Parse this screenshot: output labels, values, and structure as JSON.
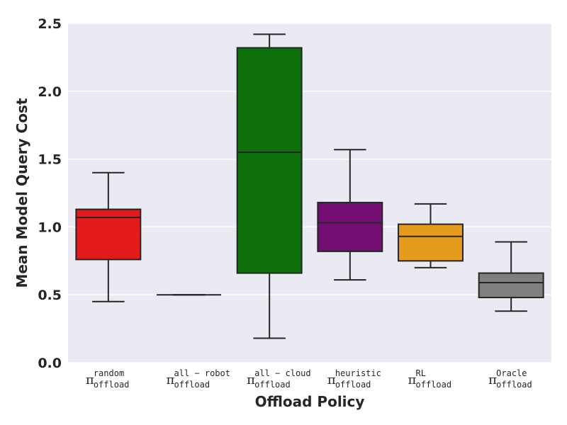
{
  "chart_data": {
    "type": "box",
    "title": "",
    "xlabel": "Offload Policy",
    "ylabel": "Mean Model Query Cost",
    "ylim": [
      0,
      2.5
    ],
    "yticks": [
      "0.0",
      "0.5",
      "1.0",
      "1.5",
      "2.0",
      "2.5"
    ],
    "grid": true,
    "background": "#eaeaf2",
    "categories": [
      {
        "symbol": "π",
        "sub": "offload",
        "sup": "random"
      },
      {
        "symbol": "π",
        "sub": "offload",
        "sup": "all − robot"
      },
      {
        "symbol": "π",
        "sub": "offload",
        "sup": "all − cloud"
      },
      {
        "symbol": "π",
        "sub": "offload",
        "sup": "heuristic"
      },
      {
        "symbol": "π",
        "sub": "offload",
        "sup": "RL"
      },
      {
        "symbol": "π",
        "sub": "offload",
        "sup": "Oracle"
      }
    ],
    "boxes": [
      {
        "whisker_low": 0.45,
        "q1": 0.76,
        "median": 1.07,
        "q3": 1.13,
        "whisker_high": 1.4,
        "color": "#e31a1c"
      },
      {
        "whisker_low": 0.5,
        "q1": 0.5,
        "median": 0.5,
        "q3": 0.5,
        "whisker_high": 0.5,
        "color": "#0000ff"
      },
      {
        "whisker_low": 0.18,
        "q1": 0.66,
        "median": 1.55,
        "q3": 2.32,
        "whisker_high": 2.42,
        "color": "#0d700d"
      },
      {
        "whisker_low": 0.61,
        "q1": 0.82,
        "median": 1.03,
        "q3": 1.18,
        "whisker_high": 1.57,
        "color": "#730c73"
      },
      {
        "whisker_low": 0.7,
        "q1": 0.75,
        "median": 0.93,
        "q3": 1.02,
        "whisker_high": 1.17,
        "color": "#e59c1c"
      },
      {
        "whisker_low": 0.38,
        "q1": 0.48,
        "median": 0.59,
        "q3": 0.66,
        "whisker_high": 0.89,
        "color": "#7f7f7f"
      }
    ]
  }
}
